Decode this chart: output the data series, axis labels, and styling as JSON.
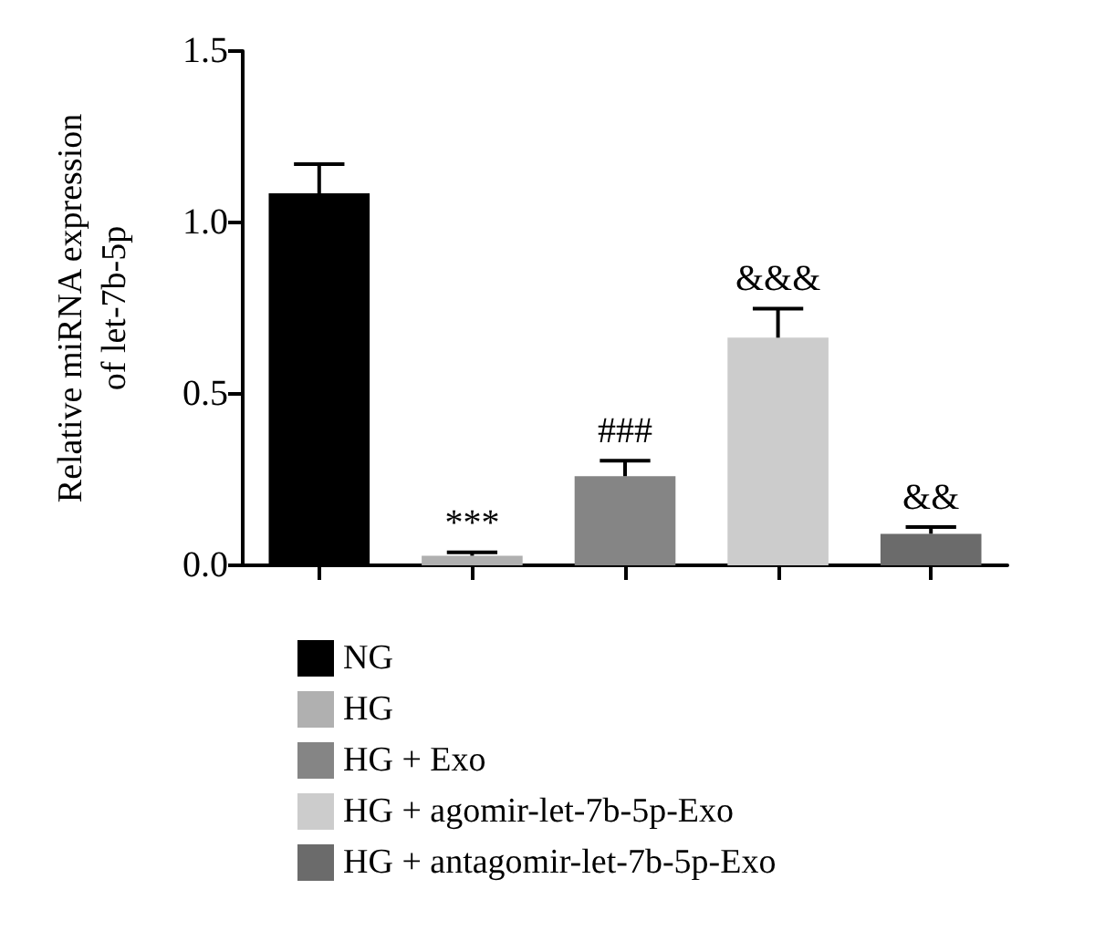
{
  "chart_data": {
    "type": "bar",
    "ylabel": "Relative miRNA expression\nof let-7b-5p",
    "categories": [
      null,
      null,
      null,
      null,
      null
    ],
    "ylim": [
      0,
      1.5
    ],
    "yticks": [
      {
        "value": 0,
        "label": "0.0"
      },
      0.5,
      {
        "value": 1,
        "label": "1.0"
      },
      1.5
    ],
    "grid": false,
    "legend": "bottom",
    "series": [
      {
        "name": "NG",
        "color": "#000000",
        "values": [
          1.085,
          null,
          null,
          null,
          null
        ],
        "errors": [
          0.085,
          null,
          null,
          null,
          null
        ]
      },
      {
        "name": "HG",
        "color": "#b0b0b0",
        "values": [
          null,
          0.028,
          null,
          null,
          null
        ],
        "errors": [
          null,
          0.01,
          null,
          null,
          null
        ],
        "value_labels": [
          null,
          "***",
          null,
          null,
          null
        ]
      },
      {
        "name": "HG + Exo",
        "color": "#858585",
        "values": [
          null,
          null,
          0.26,
          null,
          null
        ],
        "errors": [
          null,
          null,
          0.045,
          null,
          null
        ],
        "value_labels": [
          null,
          null,
          "###",
          null,
          null
        ]
      },
      {
        "name": "HG + agomir-let-7b-5p-Exo",
        "color": "#cccccc",
        "values": [
          null,
          null,
          null,
          0.664,
          null
        ],
        "errors": [
          null,
          null,
          null,
          0.085,
          null
        ],
        "value_labels": [
          null,
          null,
          null,
          "&&&",
          null
        ]
      },
      {
        "name": "HG + antagomir-let-7b-5p-Exo",
        "color": "#6b6b6b",
        "values": [
          null,
          null,
          null,
          null,
          0.092
        ],
        "errors": [
          null,
          null,
          null,
          null,
          0.02
        ],
        "value_labels": [
          null,
          null,
          null,
          null,
          "&&"
        ]
      }
    ]
  }
}
